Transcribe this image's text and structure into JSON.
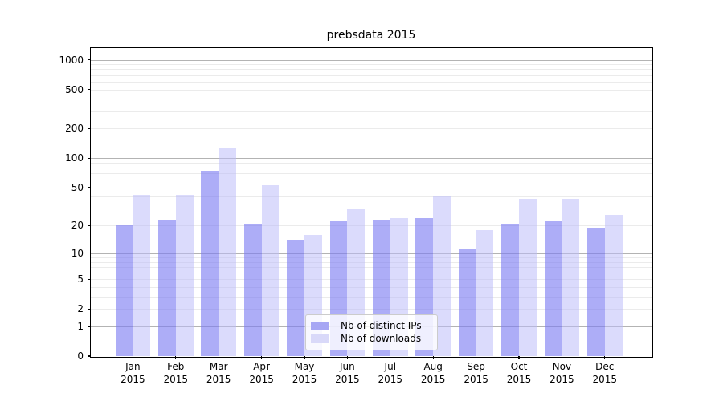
{
  "chart_data": {
    "type": "bar",
    "title": "prebsdata 2015",
    "categories": [
      "Jan",
      "Feb",
      "Mar",
      "Apr",
      "May",
      "Jun",
      "Jul",
      "Aug",
      "Sep",
      "Oct",
      "Nov",
      "Dec"
    ],
    "category_year": "2015",
    "series": [
      {
        "name": "Nb of distinct IPs",
        "values": [
          20,
          23,
          74,
          21,
          14,
          22,
          23,
          24,
          11,
          21,
          22,
          19
        ],
        "color": "#a7a7f4",
        "fill": "rgba(122,122,242,0.62)"
      },
      {
        "name": "Nb of downloads",
        "values": [
          42,
          42,
          125,
          53,
          16,
          30,
          24,
          40,
          18,
          38,
          38,
          26
        ],
        "color": "#d9d9f9",
        "fill": "rgba(186,186,249,0.52)"
      }
    ],
    "y_axis": {
      "scale": "log10(value+1)",
      "tick_values": [
        0,
        1,
        2,
        5,
        10,
        20,
        50,
        100,
        200,
        500,
        1000
      ],
      "major_gridline_values": [
        1,
        10,
        100,
        1000
      ],
      "minor_gridline_values": [
        2,
        3,
        4,
        5,
        6,
        7,
        8,
        9,
        20,
        30,
        40,
        50,
        60,
        70,
        80,
        90,
        200,
        300,
        400,
        500,
        600,
        700,
        800,
        900
      ],
      "major_grid_color": "#b3b3b3",
      "minor_grid_color": "#ebebeb",
      "ylim": [
        0,
        1300
      ]
    },
    "legend": {
      "position": "lower center",
      "entries": [
        "Nb of distinct IPs",
        "Nb of downloads"
      ]
    },
    "grid": "on"
  }
}
